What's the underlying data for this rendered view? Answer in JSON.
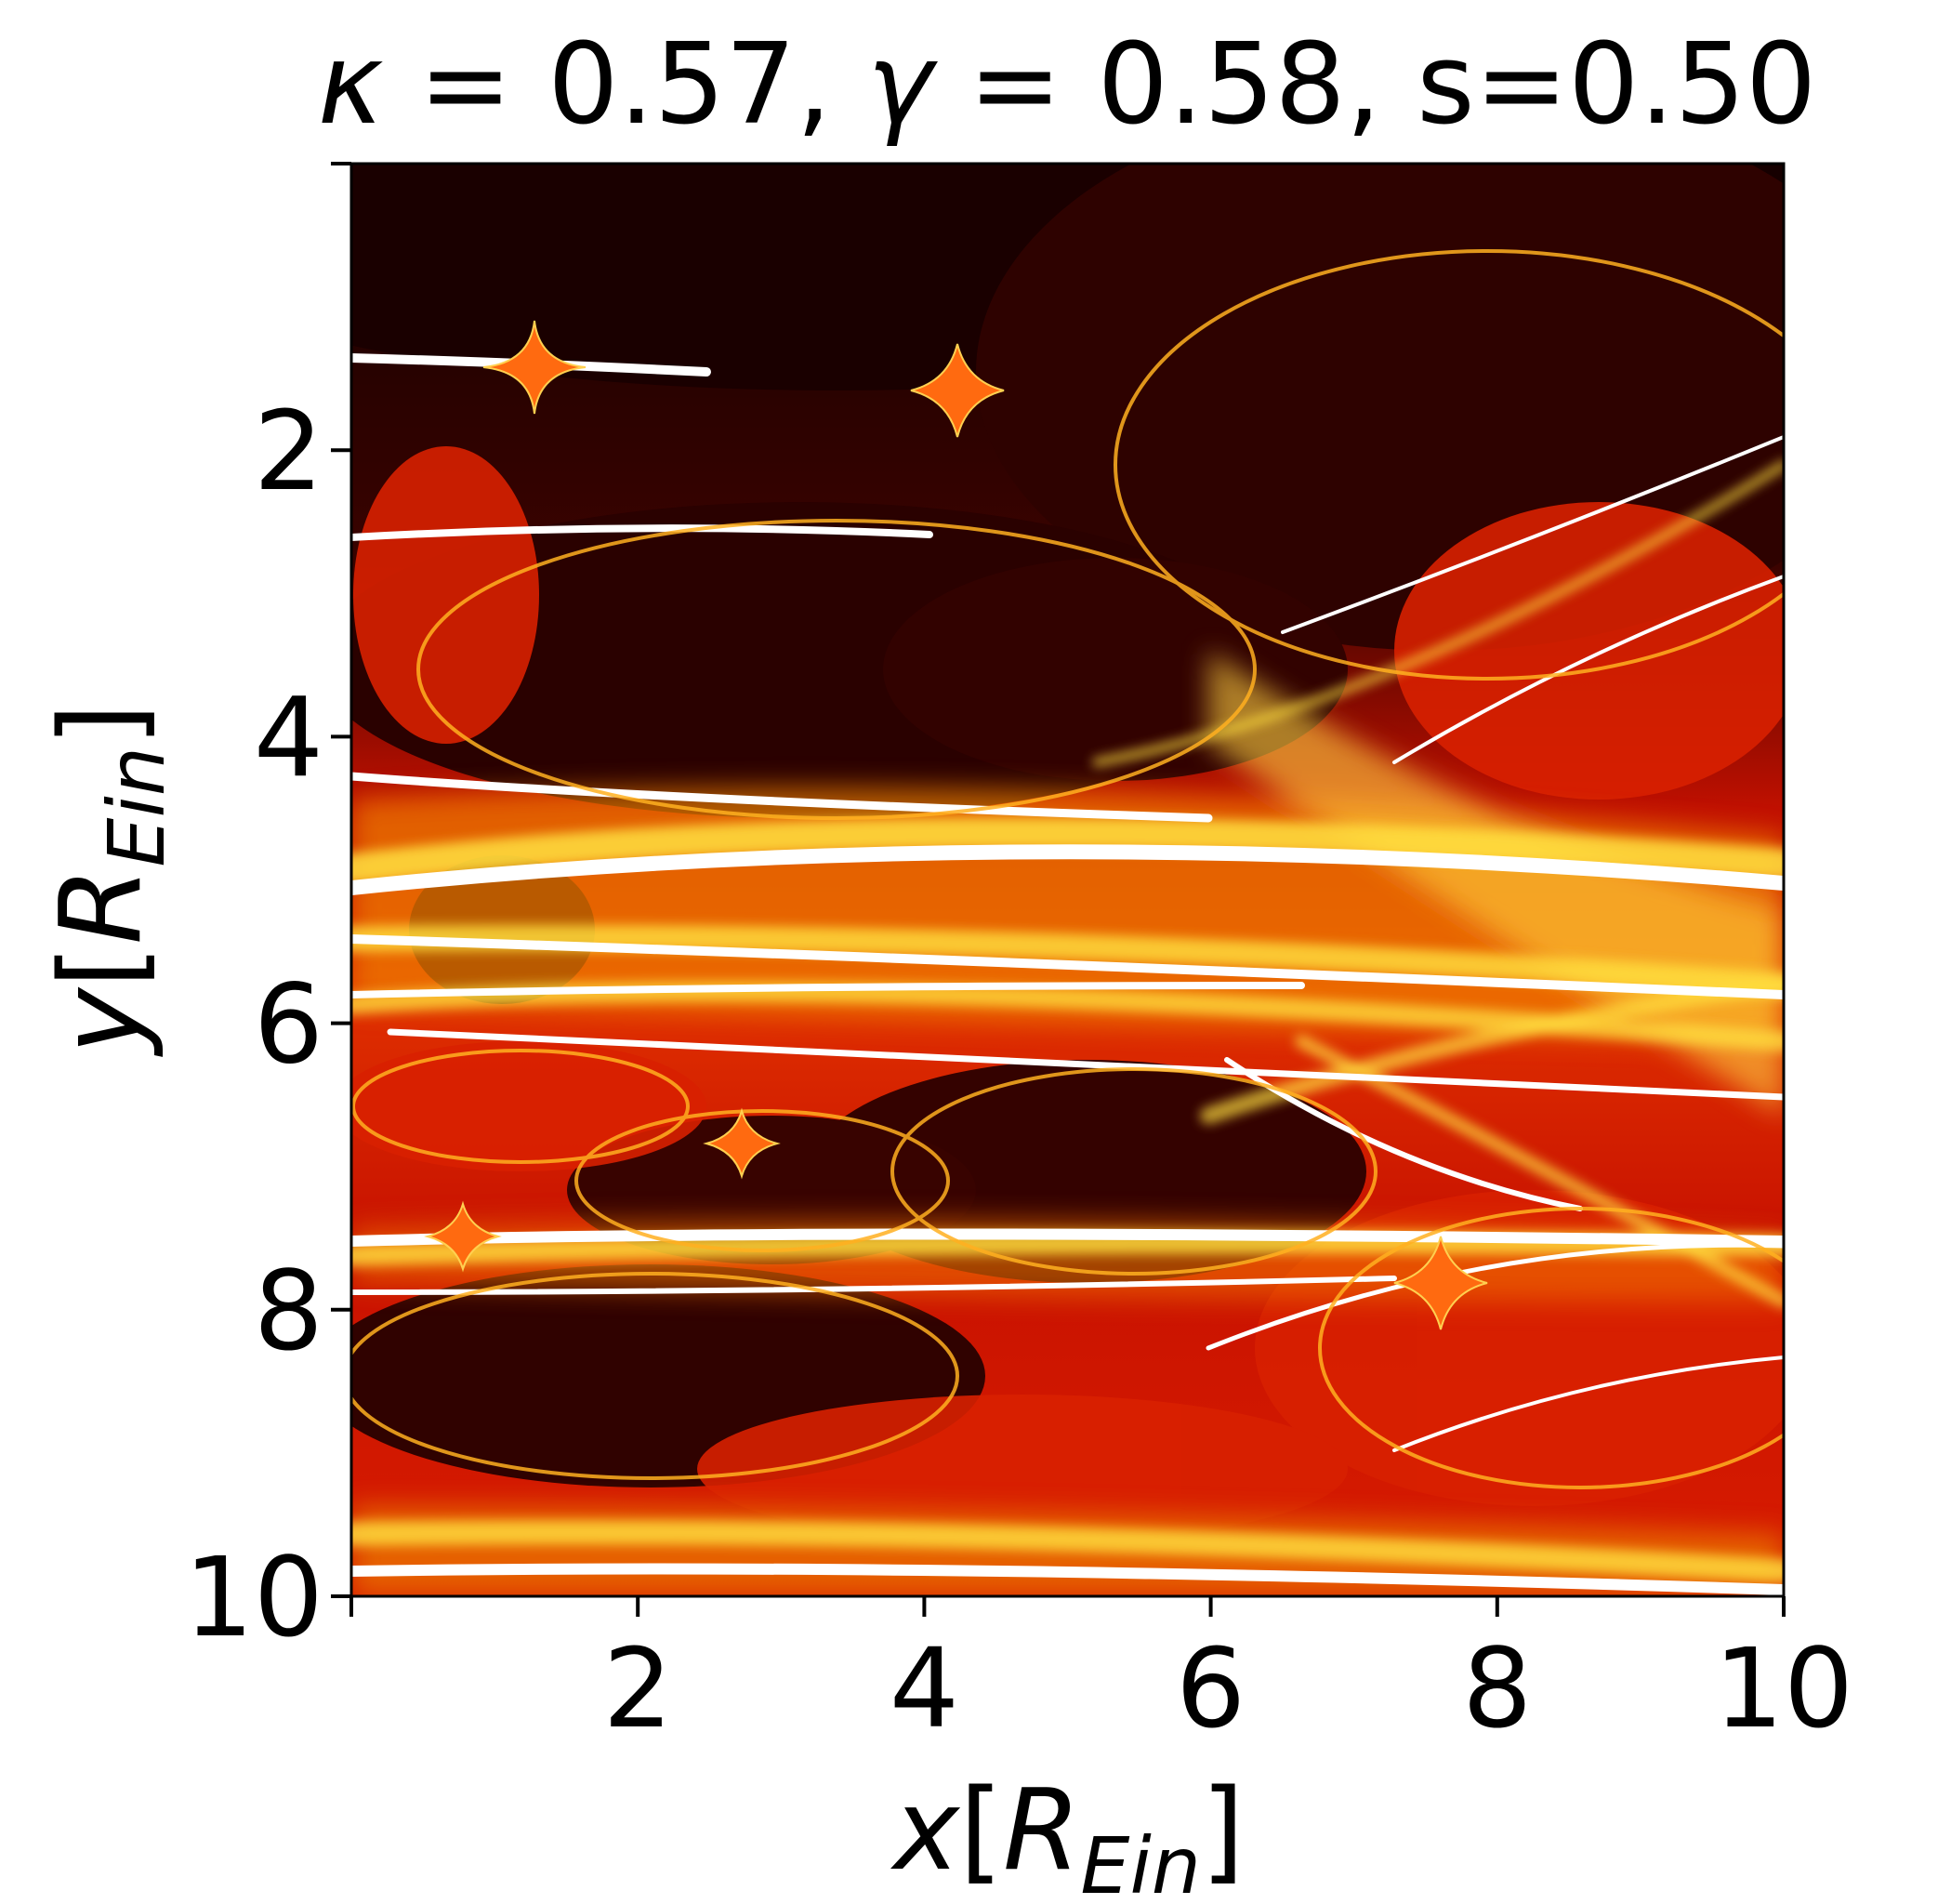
{
  "chart_data": {
    "type": "heatmap",
    "title": {
      "kappa_symbol": "κ",
      "kappa_value": "= 0.57,",
      "gamma_symbol": "γ",
      "gamma_value": "= 0.58,",
      "s_text": "s=0.50"
    },
    "xlabel": {
      "var": "x",
      "open": "[",
      "R": "R",
      "sub": "Ein",
      "close": "]"
    },
    "ylabel": {
      "var": "y",
      "open": "[",
      "R": "R",
      "sub": "Ein",
      "close": "]"
    },
    "xlim": [
      0,
      10
    ],
    "ylim": [
      0,
      10
    ],
    "y_axis_inverted": true,
    "x_ticks": [
      2,
      4,
      6,
      8,
      10
    ],
    "y_ticks": [
      2,
      4,
      6,
      8,
      10
    ],
    "colormap": "hot",
    "colors": {
      "dark": "#1a0000",
      "mid": "#d01000",
      "bright": "#ffff40",
      "peak": "#ffffff"
    },
    "grid": false,
    "legend": "none"
  }
}
